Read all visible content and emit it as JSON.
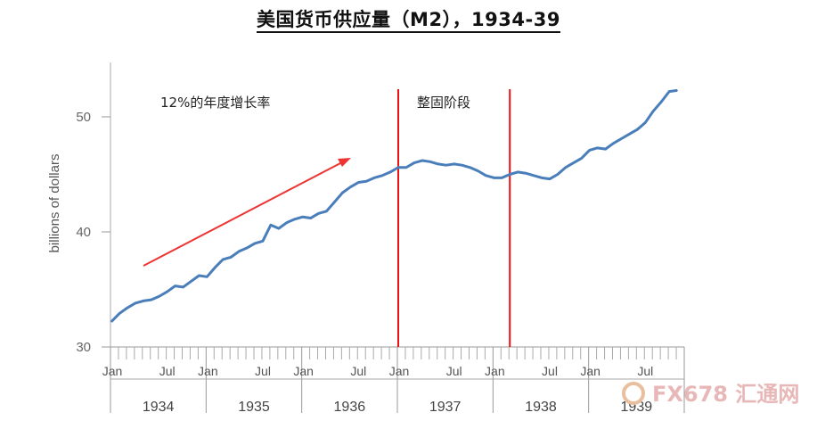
{
  "chart_data": {
    "type": "line",
    "title": "美国货币供应量（M2），1934-39",
    "ylabel": "billions of dollars",
    "ylim": [
      30,
      55
    ],
    "yticks": [
      30,
      40,
      50
    ],
    "month_labels": [
      "Jan",
      "Jul"
    ],
    "years": [
      "1934",
      "1935",
      "1936",
      "1937",
      "1938",
      "1939"
    ],
    "x_range": [
      "1934-01",
      "1939-12"
    ],
    "series": [
      {
        "color": "#4a7ebb",
        "x": [
          "1934-01",
          "1934-02",
          "1934-03",
          "1934-04",
          "1934-05",
          "1934-06",
          "1934-07",
          "1934-08",
          "1934-09",
          "1934-10",
          "1934-11",
          "1934-12",
          "1935-01",
          "1935-02",
          "1935-03",
          "1935-04",
          "1935-05",
          "1935-06",
          "1935-07",
          "1935-08",
          "1935-09",
          "1935-10",
          "1935-11",
          "1935-12",
          "1936-01",
          "1936-02",
          "1936-03",
          "1936-04",
          "1936-05",
          "1936-06",
          "1936-07",
          "1936-08",
          "1936-09",
          "1936-10",
          "1936-11",
          "1936-12",
          "1937-01",
          "1937-02",
          "1937-03",
          "1937-04",
          "1937-05",
          "1937-06",
          "1937-07",
          "1937-08",
          "1937-09",
          "1937-10",
          "1937-11",
          "1937-12",
          "1938-01",
          "1938-02",
          "1938-03",
          "1938-04",
          "1938-05",
          "1938-06",
          "1938-07",
          "1938-08",
          "1938-09",
          "1938-10",
          "1938-11",
          "1938-12",
          "1939-01",
          "1939-02",
          "1939-03",
          "1939-04",
          "1939-05",
          "1939-06",
          "1939-07",
          "1939-08",
          "1939-09",
          "1939-10",
          "1939-11",
          "1939-12"
        ],
        "values": [
          32.2,
          32.9,
          33.4,
          33.8,
          34.0,
          34.1,
          34.4,
          34.8,
          35.3,
          35.2,
          35.7,
          36.2,
          36.1,
          36.9,
          37.6,
          37.8,
          38.3,
          38.6,
          39.0,
          39.2,
          40.6,
          40.3,
          40.8,
          41.1,
          41.3,
          41.2,
          41.6,
          41.8,
          42.6,
          43.4,
          43.9,
          44.3,
          44.4,
          44.7,
          44.9,
          45.2,
          45.6,
          45.6,
          46.0,
          46.2,
          46.1,
          45.9,
          45.8,
          45.9,
          45.8,
          45.6,
          45.3,
          44.9,
          44.7,
          44.7,
          45.0,
          45.2,
          45.1,
          44.9,
          44.7,
          44.6,
          45.0,
          45.6,
          46.0,
          46.4,
          47.1,
          47.3,
          47.2,
          47.7,
          48.1,
          48.5,
          48.9,
          49.5,
          50.5,
          51.3,
          52.2,
          52.3
        ]
      }
    ],
    "annotations": [
      {
        "text": "12%的年度增长率",
        "arrow": true,
        "arrow_color": "#ee3333"
      },
      {
        "text": "整固阶段",
        "vlines": [
          "1937-01",
          "1938-03"
        ],
        "vline_color": "#ee1111"
      }
    ]
  },
  "watermark": {
    "text": "FX678 汇通网"
  }
}
